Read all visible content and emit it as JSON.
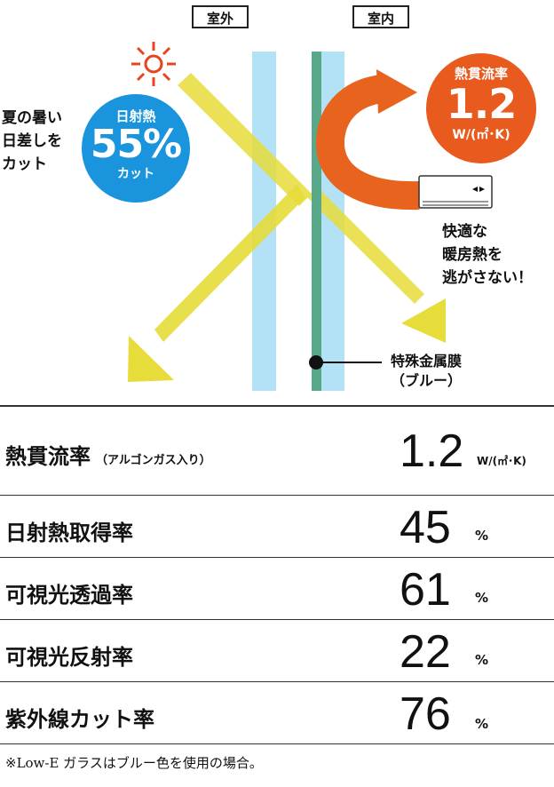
{
  "header": {
    "outdoor_label": "室外",
    "indoor_label": "室内"
  },
  "diagram": {
    "left_note": "夏の暑い\n日差しを\nカット",
    "solar_badge": {
      "line1": "日射熱",
      "value": "55%",
      "line3": "カット",
      "color": "#1a95dd"
    },
    "heat_badge": {
      "line1": "熱貫流率",
      "value": "1.2",
      "line3": "W/(㎡･K)",
      "color": "#e85a1e"
    },
    "right_note": "快適な\n暖房熱を\n逃がさない！",
    "film_label": "特殊金属膜\n（ブルー）",
    "colors": {
      "glass": "#b3e1f5",
      "film": "#5aa88a",
      "sun_arrow": "#e6dc3a",
      "sun_icon": "#e8431f"
    }
  },
  "table": {
    "rows": [
      {
        "label": "熱貫流率",
        "sub": "（アルゴンガス入り）",
        "value": "1.2",
        "unit": "W/(㎡･K)"
      },
      {
        "label": "日射熱取得率",
        "value": "45",
        "unit": "%"
      },
      {
        "label": "可視光透過率",
        "value": "61",
        "unit": "%"
      },
      {
        "label": "可視光反射率",
        "value": "22",
        "unit": "%"
      },
      {
        "label": "紫外線カット率",
        "value": "76",
        "unit": "%"
      }
    ]
  },
  "footnote": "※Low-E ガラスはブルー色を使用の場合。"
}
